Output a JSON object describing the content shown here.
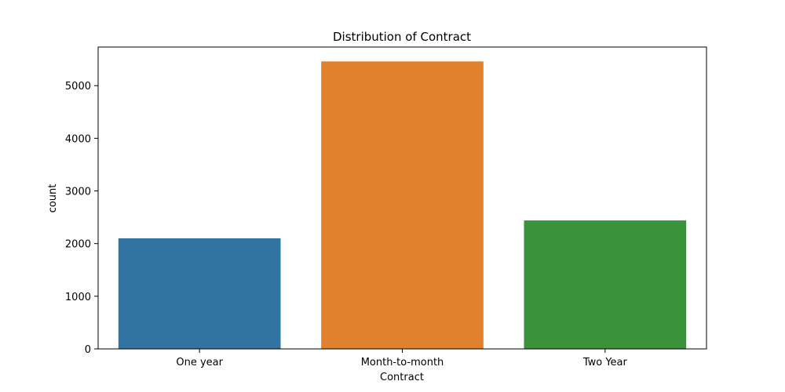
{
  "chart_data": {
    "type": "bar",
    "title": "Distribution of Contract",
    "xlabel": "Contract",
    "ylabel": "count",
    "categories": [
      "One year",
      "Month-to-month",
      "Two Year"
    ],
    "values": [
      2100,
      5460,
      2440
    ],
    "colors": [
      "#3274a1",
      "#e1812c",
      "#3a923a"
    ],
    "ylim": [
      0,
      5733
    ],
    "yticks": [
      0,
      1000,
      2000,
      3000,
      4000,
      5000
    ],
    "grid": false,
    "legend": "none"
  }
}
